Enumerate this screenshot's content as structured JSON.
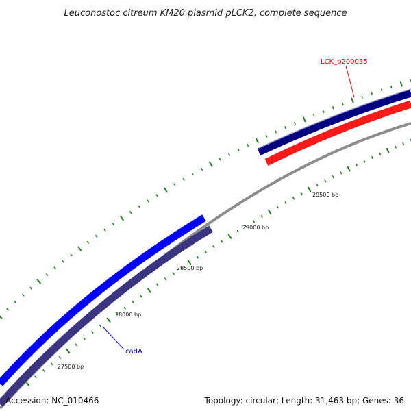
{
  "title": "Leuconostoc citreum KM20 plasmid pLCK2, complete sequence",
  "colors": {
    "backbone": "#8c8c8c",
    "tick": "#1f7a1f",
    "label_red": "#ff0000",
    "label_blue": "#0000dd"
  },
  "genes": [
    {
      "name": "LCK_p200035",
      "label_color": "#ff0000",
      "fwd_color": "#000080",
      "rev_color": "#ff1a1a"
    },
    {
      "name": "cadA",
      "label_color": "#0000dd",
      "fwd_color": "#0000ff",
      "rev_color": "#3a3580"
    }
  ],
  "tick_labels": [
    "29500 bp",
    "29000 bp",
    "28500 bp",
    "28000 bp",
    "27500 bp"
  ],
  "footer": {
    "accession": "Accession: NC_010466",
    "summary": "Topology: circular; Length: 31,463 bp; Genes: 36"
  }
}
